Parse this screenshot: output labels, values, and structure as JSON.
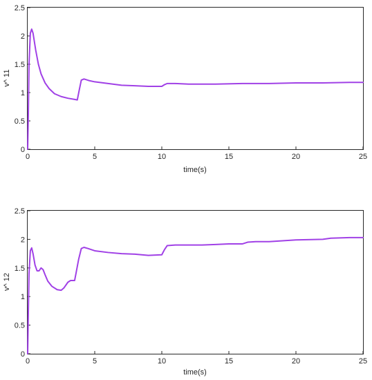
{
  "chart_data": [
    {
      "type": "line",
      "xlabel": "time(s)",
      "ylabel": "v^  11",
      "xlim": [
        0,
        25
      ],
      "ylim": [
        0,
        2.5
      ],
      "xticks": [
        0,
        5,
        10,
        15,
        20,
        25
      ],
      "yticks": [
        0,
        0.5,
        1,
        1.5,
        2,
        2.5
      ],
      "xtick_labels": [
        "0",
        "5",
        "10",
        "15",
        "20",
        "25"
      ],
      "ytick_labels": [
        "0",
        "0.5",
        "1",
        "1.5",
        "2",
        "2.5"
      ],
      "grid": false,
      "series": [
        {
          "color": "#a040e6",
          "x": [
            0,
            0.05,
            0.1,
            0.2,
            0.3,
            0.4,
            0.6,
            0.8,
            1.0,
            1.3,
            1.6,
            2.0,
            2.5,
            3.0,
            3.5,
            3.7,
            3.85,
            4.0,
            4.2,
            4.6,
            5.0,
            6.0,
            7.0,
            8.0,
            9.0,
            10.0,
            10.2,
            10.4,
            11.0,
            12.0,
            14.0,
            16.0,
            18.0,
            20.0,
            22.0,
            24.0,
            25.0
          ],
          "y": [
            0.0,
            0.6,
            1.5,
            2.05,
            2.12,
            2.05,
            1.75,
            1.5,
            1.33,
            1.17,
            1.07,
            0.98,
            0.93,
            0.9,
            0.88,
            0.87,
            1.05,
            1.22,
            1.24,
            1.21,
            1.19,
            1.16,
            1.13,
            1.12,
            1.11,
            1.11,
            1.14,
            1.16,
            1.16,
            1.15,
            1.15,
            1.16,
            1.16,
            1.17,
            1.17,
            1.18,
            1.18
          ]
        }
      ]
    },
    {
      "type": "line",
      "xlabel": "time(s)",
      "ylabel": "v^  12",
      "xlim": [
        0,
        25
      ],
      "ylim": [
        0,
        2.5
      ],
      "xticks": [
        0,
        5,
        10,
        15,
        20,
        25
      ],
      "yticks": [
        0,
        0.5,
        1,
        1.5,
        2,
        2.5
      ],
      "xtick_labels": [
        "0",
        "5",
        "10",
        "15",
        "20",
        "25"
      ],
      "ytick_labels": [
        "0",
        "0.5",
        "1",
        "1.5",
        "2",
        "2.5"
      ],
      "grid": false,
      "series": [
        {
          "color": "#a040e6",
          "x": [
            0,
            0.05,
            0.1,
            0.2,
            0.3,
            0.4,
            0.55,
            0.7,
            0.85,
            1.0,
            1.15,
            1.3,
            1.5,
            1.8,
            2.2,
            2.5,
            2.7,
            3.0,
            3.2,
            3.5,
            3.6,
            3.8,
            4.0,
            4.2,
            4.5,
            5.0,
            6.0,
            7.0,
            8.0,
            9.0,
            10.0,
            10.2,
            10.4,
            11.0,
            12.0,
            13.0,
            14.0,
            15.0,
            16.0,
            16.4,
            17.0,
            18.0,
            20.0,
            22.0,
            22.6,
            24.0,
            25.0
          ],
          "y": [
            0.0,
            0.7,
            1.4,
            1.8,
            1.85,
            1.75,
            1.55,
            1.45,
            1.45,
            1.5,
            1.47,
            1.38,
            1.27,
            1.18,
            1.12,
            1.11,
            1.15,
            1.25,
            1.28,
            1.28,
            1.4,
            1.65,
            1.84,
            1.86,
            1.84,
            1.8,
            1.77,
            1.75,
            1.74,
            1.72,
            1.73,
            1.82,
            1.89,
            1.9,
            1.9,
            1.9,
            1.91,
            1.92,
            1.92,
            1.95,
            1.96,
            1.96,
            1.99,
            2.0,
            2.02,
            2.03,
            2.03
          ]
        }
      ]
    }
  ]
}
